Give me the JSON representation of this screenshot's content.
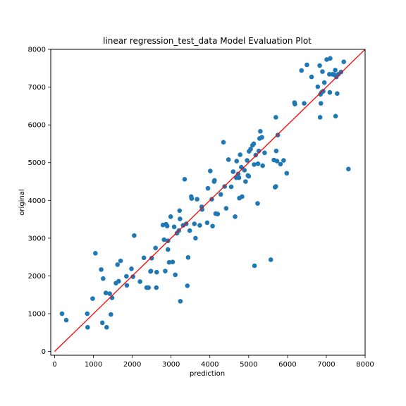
{
  "chart_data": {
    "type": "scatter",
    "title": "linear regression_test_data Model Evaluation Plot",
    "xlabel": "prediction",
    "ylabel": "original",
    "xlim": [
      -100,
      8000
    ],
    "ylim": [
      -100,
      8000
    ],
    "xticks": [
      0,
      1000,
      2000,
      3000,
      4000,
      5000,
      6000,
      7000,
      8000
    ],
    "yticks": [
      0,
      1000,
      2000,
      3000,
      4000,
      5000,
      6000,
      7000,
      8000
    ],
    "grid": false,
    "colors": {
      "points": "#1f77b4",
      "reference_line": "#ff0000",
      "axes": "#000000"
    },
    "reference_line": {
      "from": [
        0,
        0
      ],
      "to": [
        8000,
        8000
      ]
    },
    "series": [
      {
        "points": [
          [
            190,
            1000
          ],
          [
            300,
            830
          ],
          [
            840,
            1000
          ],
          [
            850,
            640
          ],
          [
            980,
            1400
          ],
          [
            1050,
            2600
          ],
          [
            1200,
            2170
          ],
          [
            1230,
            760
          ],
          [
            1250,
            1930
          ],
          [
            1320,
            1550
          ],
          [
            1340,
            640
          ],
          [
            1420,
            1530
          ],
          [
            1450,
            980
          ],
          [
            1480,
            1420
          ],
          [
            1580,
            1810
          ],
          [
            1620,
            2300
          ],
          [
            1650,
            1860
          ],
          [
            1700,
            2400
          ],
          [
            1850,
            1990
          ],
          [
            1860,
            1750
          ],
          [
            1980,
            2190
          ],
          [
            2020,
            1980
          ],
          [
            2050,
            3070
          ],
          [
            2200,
            1850
          ],
          [
            2300,
            2480
          ],
          [
            2370,
            1690
          ],
          [
            2420,
            1690
          ],
          [
            2470,
            2120
          ],
          [
            2480,
            2130
          ],
          [
            2500,
            2470
          ],
          [
            2600,
            2740
          ],
          [
            2620,
            1690
          ],
          [
            2630,
            2100
          ],
          [
            2790,
            3350
          ],
          [
            2820,
            2960
          ],
          [
            2850,
            2130
          ],
          [
            2870,
            3370
          ],
          [
            2900,
            3320
          ],
          [
            2920,
            2930
          ],
          [
            2920,
            2700
          ],
          [
            2950,
            2360
          ],
          [
            2990,
            3570
          ],
          [
            3040,
            2370
          ],
          [
            3080,
            3300
          ],
          [
            3110,
            2030
          ],
          [
            3150,
            3130
          ],
          [
            3200,
            3200
          ],
          [
            3220,
            3730
          ],
          [
            3230,
            3510
          ],
          [
            3240,
            1330
          ],
          [
            3310,
            3340
          ],
          [
            3350,
            4560
          ],
          [
            3390,
            3380
          ],
          [
            3420,
            1740
          ],
          [
            3440,
            2490
          ],
          [
            3480,
            3200
          ],
          [
            3520,
            4100
          ],
          [
            3530,
            4050
          ],
          [
            3600,
            3380
          ],
          [
            3630,
            3000
          ],
          [
            3670,
            4030
          ],
          [
            3740,
            3340
          ],
          [
            3790,
            3830
          ],
          [
            3800,
            3760
          ],
          [
            3930,
            3410
          ],
          [
            3950,
            4320
          ],
          [
            4010,
            4780
          ],
          [
            4050,
            4030
          ],
          [
            4070,
            3320
          ],
          [
            4110,
            4500
          ],
          [
            4120,
            4530
          ],
          [
            4150,
            3650
          ],
          [
            4200,
            3640
          ],
          [
            4280,
            4160
          ],
          [
            4350,
            5540
          ],
          [
            4380,
            4370
          ],
          [
            4420,
            3790
          ],
          [
            4480,
            5080
          ],
          [
            4550,
            4360
          ],
          [
            4600,
            4760
          ],
          [
            4650,
            3570
          ],
          [
            4680,
            4600
          ],
          [
            4690,
            5040
          ],
          [
            4730,
            4700
          ],
          [
            4750,
            4600
          ],
          [
            4760,
            4060
          ],
          [
            4780,
            5210
          ],
          [
            4810,
            4880
          ],
          [
            4830,
            4100
          ],
          [
            4890,
            4800
          ],
          [
            4920,
            4500
          ],
          [
            4960,
            5060
          ],
          [
            4980,
            4660
          ],
          [
            5000,
            4640
          ],
          [
            5010,
            5300
          ],
          [
            5050,
            5360
          ],
          [
            5100,
            5460
          ],
          [
            5130,
            5500
          ],
          [
            5140,
            4950
          ],
          [
            5150,
            2270
          ],
          [
            5180,
            5200
          ],
          [
            5230,
            3920
          ],
          [
            5240,
            4970
          ],
          [
            5260,
            5310
          ],
          [
            5280,
            5640
          ],
          [
            5300,
            5830
          ],
          [
            5340,
            5670
          ],
          [
            5360,
            4920
          ],
          [
            5410,
            5260
          ],
          [
            5570,
            2430
          ],
          [
            5650,
            5070
          ],
          [
            5680,
            4350
          ],
          [
            5700,
            6200
          ],
          [
            5700,
            4370
          ],
          [
            5710,
            5310
          ],
          [
            5730,
            5040
          ],
          [
            5750,
            5730
          ],
          [
            5820,
            4960
          ],
          [
            5900,
            5060
          ],
          [
            5980,
            4720
          ],
          [
            6180,
            6590
          ],
          [
            6190,
            6550
          ],
          [
            6360,
            7440
          ],
          [
            6430,
            6570
          ],
          [
            6500,
            7590
          ],
          [
            6620,
            7270
          ],
          [
            6780,
            7010
          ],
          [
            6830,
            7570
          ],
          [
            6840,
            6200
          ],
          [
            6850,
            6810
          ],
          [
            6860,
            6570
          ],
          [
            6880,
            6860
          ],
          [
            6900,
            7410
          ],
          [
            6920,
            6890
          ],
          [
            6950,
            7120
          ],
          [
            7010,
            7730
          ],
          [
            7080,
            7340
          ],
          [
            7090,
            6860
          ],
          [
            7100,
            7760
          ],
          [
            7160,
            7340
          ],
          [
            7200,
            7330
          ],
          [
            7230,
            7450
          ],
          [
            7240,
            6230
          ],
          [
            7260,
            7270
          ],
          [
            7280,
            6830
          ],
          [
            7310,
            7340
          ],
          [
            7380,
            7400
          ],
          [
            7450,
            7670
          ],
          [
            7570,
            4830
          ]
        ]
      }
    ]
  }
}
